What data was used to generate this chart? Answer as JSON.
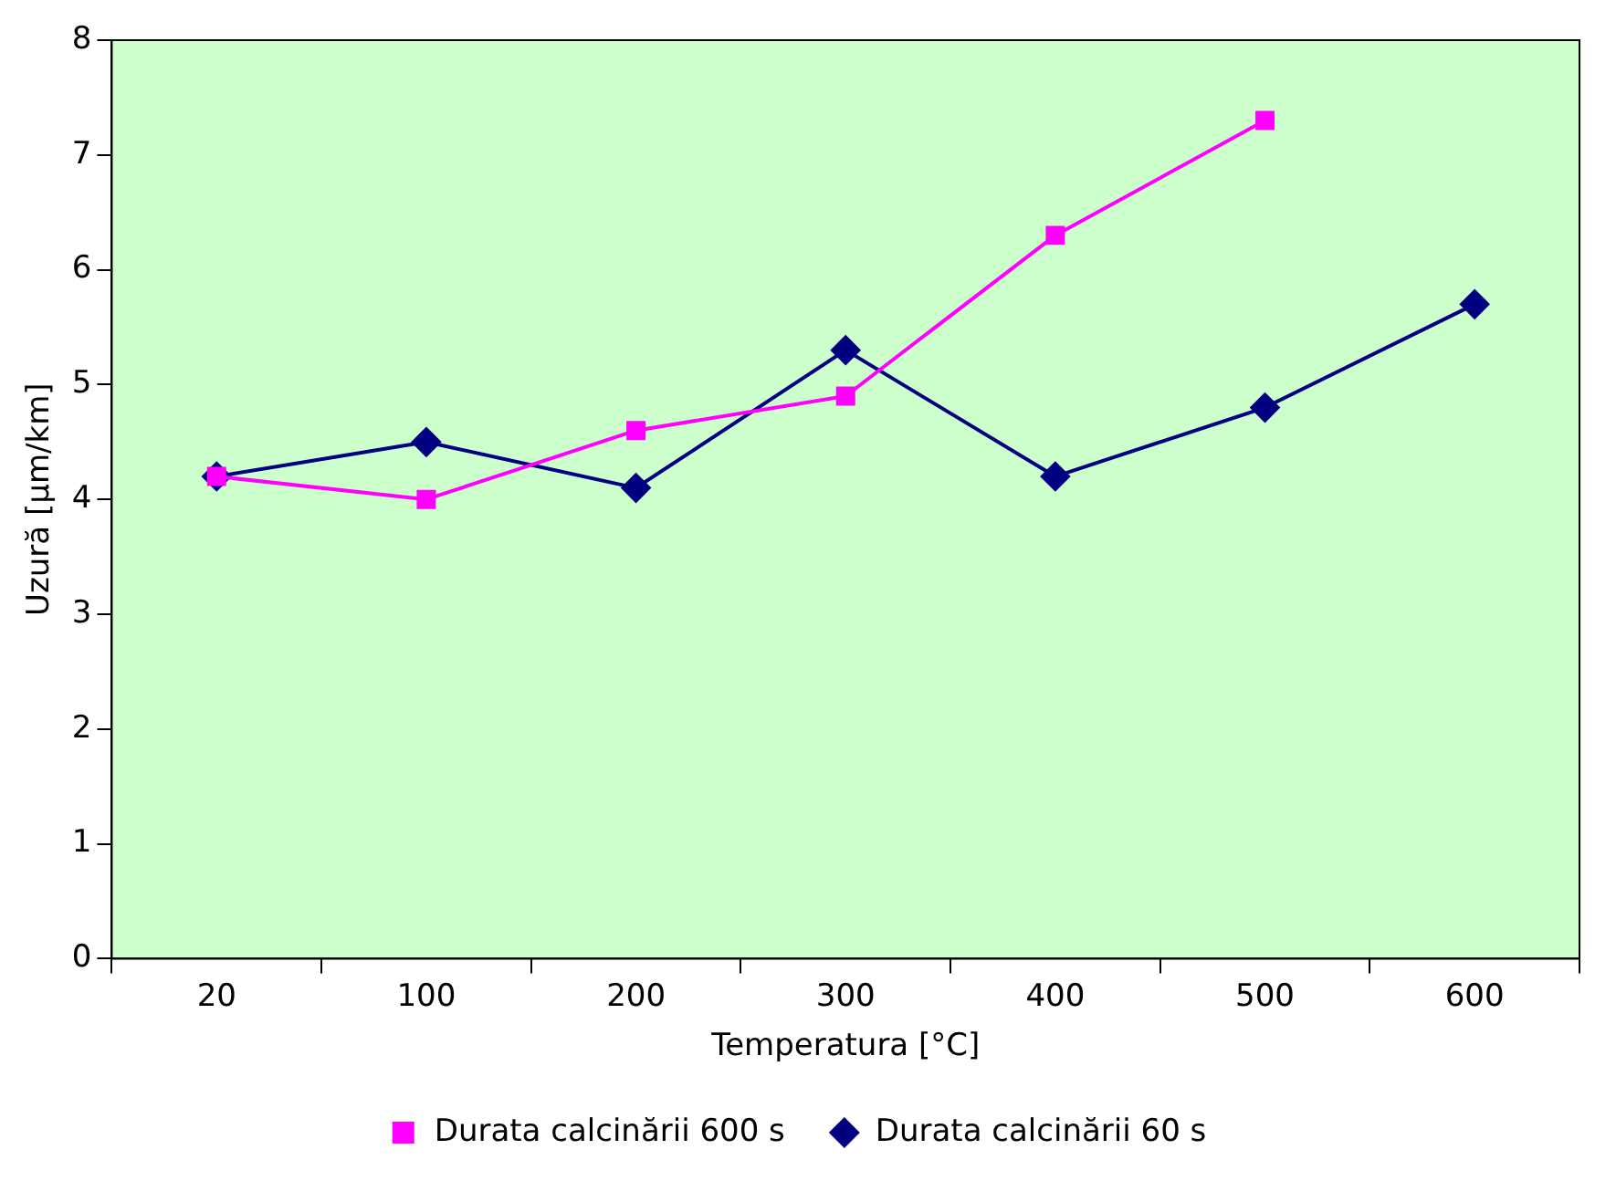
{
  "chart_data": {
    "type": "line",
    "xlabel": "Temperatura [°C]",
    "ylabel": "Uzură [µm/km]",
    "categories": [
      "20",
      "100",
      "200",
      "300",
      "400",
      "500",
      "600"
    ],
    "series": [
      {
        "name": "Durata calcinării 60 s",
        "color": "#000080",
        "marker": "diamond",
        "values": [
          4.2,
          4.5,
          4.1,
          5.3,
          4.2,
          4.8,
          5.7
        ]
      },
      {
        "name": "Durata calcinării 600 s",
        "color": "#ff00ff",
        "marker": "square",
        "values": [
          4.2,
          4.0,
          4.6,
          4.9,
          6.3,
          7.3,
          null
        ]
      }
    ],
    "ylim": [
      0,
      8
    ],
    "yticks": [
      0,
      1,
      2,
      3,
      4,
      5,
      6,
      7,
      8
    ],
    "grid": false,
    "legend": "bottom"
  }
}
